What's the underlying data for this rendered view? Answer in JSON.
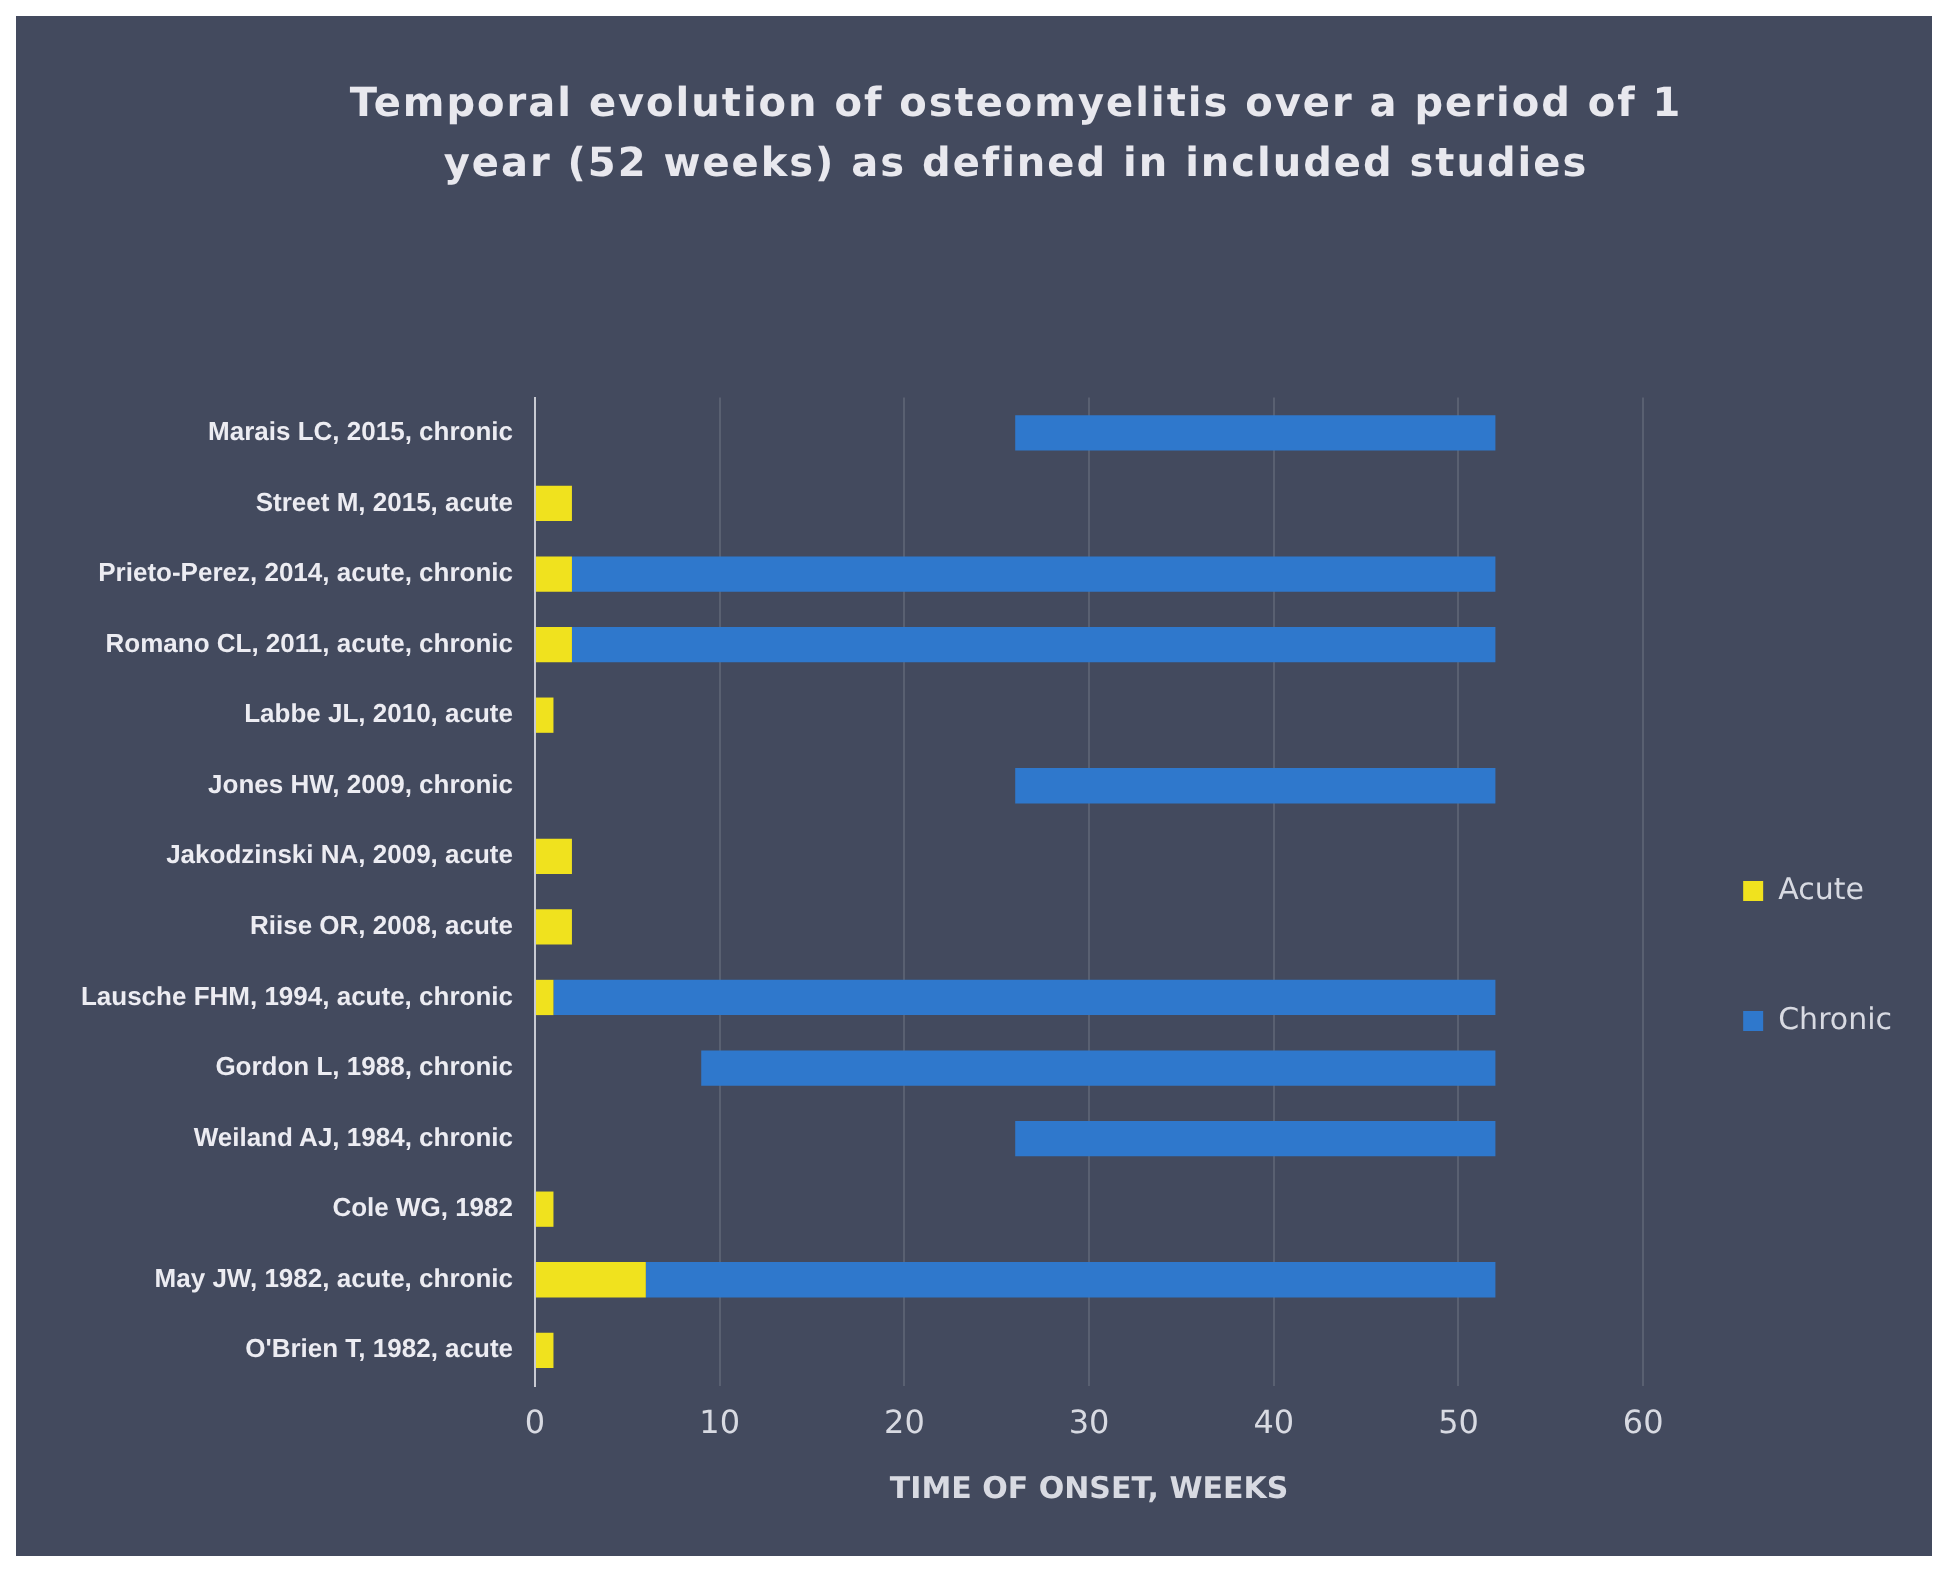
{
  "chart_data": {
    "type": "bar",
    "orientation": "horizontal",
    "title": "Temporal evolution of osteomyelitis over a period of 1 year (52 weeks) as defined in included studies",
    "xlabel": "TIME OF ONSET, WEEKS",
    "categories": [
      "Marais LC, 2015, chronic",
      "Street M, 2015, acute",
      "Prieto-Perez, 2014, acute, chronic",
      "Romano CL, 2011, acute, chronic",
      "Labbe JL, 2010, acute",
      "Jones HW, 2009, chronic",
      "Jakodzinski NA, 2009, acute",
      "Riise OR, 2008, acute",
      "Lausche FHM, 1994, acute, chronic",
      "Gordon L, 1988, chronic",
      "Weiland AJ, 1984, chronic",
      "Cole WG, 1982",
      "May JW, 1982, acute, chronic",
      "O'Brien T, 1982, acute"
    ],
    "series": [
      {
        "name": "Acute",
        "color": "#f0e21e",
        "values": [
          null,
          2,
          2,
          2,
          1,
          null,
          2,
          2,
          1,
          null,
          null,
          1,
          6,
          1
        ]
      },
      {
        "name": "Chronic",
        "color": "#2f78cc",
        "base": [
          26,
          null,
          2,
          2,
          null,
          26,
          null,
          null,
          1,
          9,
          26,
          null,
          6,
          null
        ],
        "values": [
          26,
          null,
          50,
          50,
          null,
          26,
          null,
          null,
          51,
          43,
          26,
          null,
          46,
          null
        ]
      }
    ],
    "xlim": [
      0,
      60
    ],
    "xticks": [
      0,
      10,
      20,
      30,
      40,
      50,
      60
    ],
    "grid": "x",
    "legend": "right"
  }
}
